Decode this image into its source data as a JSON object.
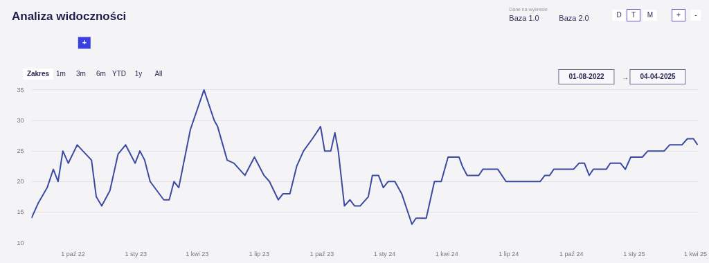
{
  "chart_data": {
    "type": "line",
    "title": "Analiza widoczności",
    "annotations": [
      "Dane na wykresie",
      "Baza 1.0",
      "Baza 2.0",
      "D",
      "T",
      "M",
      "+",
      "-",
      "+",
      "Zakres",
      "1m",
      "3m",
      "6m",
      "YTD",
      "1y",
      "All",
      "01-08-2022",
      "→",
      "04-04-2025"
    ],
    "x": [
      "2022-08-01",
      "2022-08-11",
      "2022-08-24",
      "2022-09-02",
      "2022-09-09",
      "2022-09-16",
      "2022-09-24",
      "2022-10-07",
      "2022-10-28",
      "2022-11-04",
      "2022-11-12",
      "2022-11-24",
      "2022-12-06",
      "2022-12-17",
      "2022-12-31",
      "2023-01-07",
      "2023-01-14",
      "2023-01-22",
      "2023-02-01",
      "2023-02-11",
      "2023-02-19",
      "2023-02-26",
      "2023-03-05",
      "2023-03-22",
      "2023-04-11",
      "2023-04-26",
      "2023-05-01",
      "2023-05-15",
      "2023-05-25",
      "2023-06-10",
      "2023-06-24",
      "2023-07-08",
      "2023-07-16",
      "2023-07-29",
      "2023-08-05",
      "2023-08-15",
      "2023-08-25",
      "2023-09-04",
      "2023-09-17",
      "2023-09-29",
      "2023-10-05",
      "2023-10-14",
      "2023-10-20",
      "2023-10-25",
      "2023-11-03",
      "2023-11-11",
      "2023-11-18",
      "2023-11-26",
      "2023-12-08",
      "2023-12-14",
      "2023-12-23",
      "2023-12-30",
      "2024-01-06",
      "2024-01-16",
      "2024-01-26",
      "2024-02-10",
      "2024-02-16",
      "2024-03-02",
      "2024-03-14",
      "2024-03-24",
      "2024-04-03",
      "2024-04-19",
      "2024-04-24",
      "2024-05-01",
      "2024-05-18",
      "2024-05-24",
      "2024-06-15",
      "2024-06-27",
      "2024-08-16",
      "2024-08-23",
      "2024-08-30",
      "2024-09-05",
      "2024-10-04",
      "2024-10-12",
      "2024-10-20",
      "2024-10-27",
      "2024-11-02",
      "2024-11-21",
      "2024-11-27",
      "2024-12-12",
      "2024-12-19",
      "2024-12-27",
      "2025-01-13",
      "2025-01-21",
      "2025-02-14",
      "2025-02-22",
      "2025-03-12",
      "2025-03-20",
      "2025-03-29",
      "2025-04-04"
    ],
    "series": [
      {
        "color": "#3b4aa0",
        "values": [
          14,
          16.5,
          19,
          22,
          20,
          25,
          23,
          26,
          23.5,
          17.5,
          16,
          18.5,
          24.5,
          26,
          23,
          25,
          23.5,
          20,
          18.5,
          17,
          17,
          20,
          19,
          28.5,
          35,
          30,
          29,
          23.5,
          23,
          21,
          24,
          21,
          20,
          17,
          18,
          18,
          22.5,
          25,
          27,
          29,
          25,
          25,
          28,
          25,
          16,
          17,
          16,
          16,
          17.5,
          21,
          21,
          19,
          20,
          20,
          18,
          13,
          14,
          14,
          20,
          20,
          24,
          24,
          22.5,
          21,
          21,
          22,
          22,
          20,
          20,
          21,
          21,
          22,
          22,
          23,
          23,
          21,
          22,
          22,
          23,
          23,
          22,
          24,
          24,
          25,
          25,
          26,
          26,
          27,
          27,
          26
        ]
      }
    ],
    "xlim": [
      "2022-08-01",
      "2025-04-05"
    ],
    "xticks": [
      {
        "value": "2022-10-01",
        "label": "1 paź 22"
      },
      {
        "value": "2023-01-01",
        "label": "1 sty 23"
      },
      {
        "value": "2023-04-01",
        "label": "1 kwi 23"
      },
      {
        "value": "2023-07-01",
        "label": "1 lip 23"
      },
      {
        "value": "2023-10-01",
        "label": "1 paź 23"
      },
      {
        "value": "2024-01-01",
        "label": "1 sty 24"
      },
      {
        "value": "2024-04-01",
        "label": "1 kwi 24"
      },
      {
        "value": "2024-07-01",
        "label": "1 lip 24"
      },
      {
        "value": "2024-10-01",
        "label": "1 paź 24"
      },
      {
        "value": "2025-01-01",
        "label": "1 sty 25"
      },
      {
        "value": "2025-04-01",
        "label": "1 kwi 25"
      }
    ],
    "ylim": [
      10,
      35.5
    ],
    "yticks": [
      10,
      15,
      20,
      25,
      30,
      35
    ],
    "grid": "y",
    "marker": "none",
    "line_style": "solid"
  }
}
